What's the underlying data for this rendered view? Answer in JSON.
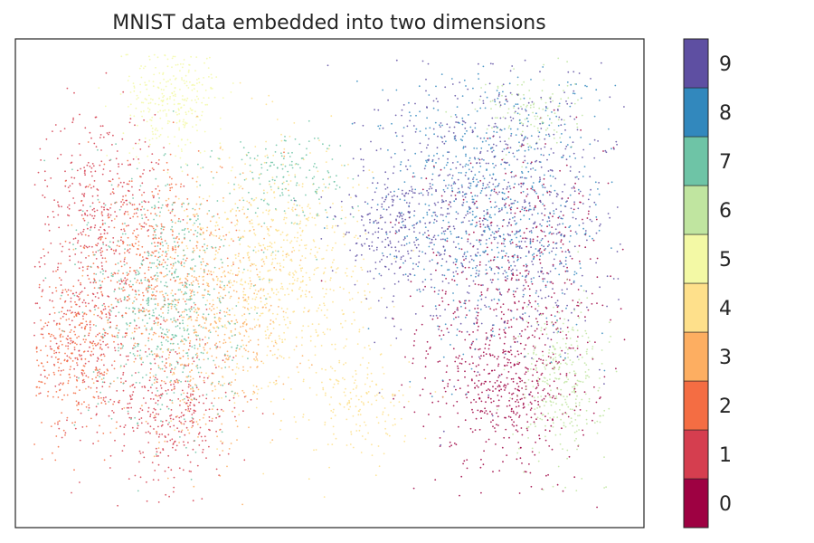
{
  "chart_data": {
    "type": "scatter",
    "title": "MNIST data embedded into two dimensions",
    "xlabel": "",
    "ylabel": "",
    "grid": false,
    "axes_ticks_visible": false,
    "colormap": "Spectral",
    "colorbar": {
      "placement": "right",
      "tick_labels": [
        "0",
        "1",
        "2",
        "3",
        "4",
        "5",
        "6",
        "7",
        "8",
        "9"
      ],
      "colors": [
        "#9e0142",
        "#d53e4f",
        "#f46d43",
        "#fdae61",
        "#fee08b",
        "#f3f9a5",
        "#c0e5a0",
        "#6ec4a6",
        "#3288bd",
        "#5e4fa2"
      ]
    },
    "clusters": [
      {
        "label": "0",
        "color": "#9e0142",
        "cx": 0.79,
        "cy": 0.42,
        "sx": 0.075,
        "sy": 0.18,
        "n": 700
      },
      {
        "label": "0",
        "color": "#9e0142",
        "cx": 0.78,
        "cy": 0.28,
        "sx": 0.05,
        "sy": 0.05,
        "n": 200
      },
      {
        "label": "1",
        "color": "#d53e4f",
        "cx": 0.11,
        "cy": 0.45,
        "sx": 0.05,
        "sy": 0.12,
        "n": 350
      },
      {
        "label": "1",
        "color": "#d53e4f",
        "cx": 0.25,
        "cy": 0.24,
        "sx": 0.05,
        "sy": 0.08,
        "n": 350
      },
      {
        "label": "1",
        "color": "#d53e4f",
        "cx": 0.14,
        "cy": 0.7,
        "sx": 0.05,
        "sy": 0.08,
        "n": 250
      },
      {
        "label": "2",
        "color": "#f46d43",
        "cx": 0.09,
        "cy": 0.35,
        "sx": 0.04,
        "sy": 0.08,
        "n": 320
      },
      {
        "label": "2",
        "color": "#f46d43",
        "cx": 0.21,
        "cy": 0.55,
        "sx": 0.06,
        "sy": 0.1,
        "n": 380
      },
      {
        "label": "3",
        "color": "#fdae61",
        "cx": 0.3,
        "cy": 0.42,
        "sx": 0.07,
        "sy": 0.12,
        "n": 600
      },
      {
        "label": "4",
        "color": "#fee08b",
        "cx": 0.42,
        "cy": 0.52,
        "sx": 0.07,
        "sy": 0.13,
        "n": 750
      },
      {
        "label": "4",
        "color": "#fee08b",
        "cx": 0.55,
        "cy": 0.25,
        "sx": 0.04,
        "sy": 0.05,
        "n": 150
      },
      {
        "label": "5",
        "color": "#f3f9a5",
        "cx": 0.25,
        "cy": 0.88,
        "sx": 0.04,
        "sy": 0.06,
        "n": 300
      },
      {
        "label": "6",
        "color": "#c0e5a0",
        "cx": 0.87,
        "cy": 0.3,
        "sx": 0.035,
        "sy": 0.08,
        "n": 300
      },
      {
        "label": "6",
        "color": "#c0e5a0",
        "cx": 0.81,
        "cy": 0.85,
        "sx": 0.04,
        "sy": 0.04,
        "n": 120
      },
      {
        "label": "7",
        "color": "#6ec4a6",
        "cx": 0.24,
        "cy": 0.47,
        "sx": 0.06,
        "sy": 0.13,
        "n": 600
      },
      {
        "label": "7",
        "color": "#6ec4a6",
        "cx": 0.43,
        "cy": 0.72,
        "sx": 0.05,
        "sy": 0.05,
        "n": 150
      },
      {
        "label": "8",
        "color": "#3288bd",
        "cx": 0.76,
        "cy": 0.66,
        "sx": 0.09,
        "sy": 0.14,
        "n": 700
      },
      {
        "label": "9",
        "color": "#5e4fa2",
        "cx": 0.77,
        "cy": 0.66,
        "sx": 0.1,
        "sy": 0.15,
        "n": 800
      },
      {
        "label": "9",
        "color": "#5e4fa2",
        "cx": 0.6,
        "cy": 0.62,
        "sx": 0.04,
        "sy": 0.06,
        "n": 200
      }
    ]
  }
}
